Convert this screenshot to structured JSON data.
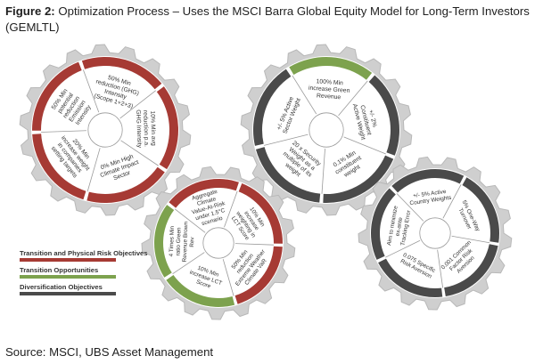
{
  "caption": {
    "figure_label": "Figure 2:",
    "text": "Optimization Process – Uses the MSCI Barra Global Equity Model for Long-Term Investors (GEMLTL)"
  },
  "colors": {
    "red": "#a63a34",
    "green": "#7da24e",
    "grey": "#4a4a4a",
    "gear": "#cfcfcf",
    "gear_edge": "#b8b8b8"
  },
  "legend": [
    {
      "label": "Transition and Physical Risk Objectives",
      "color": "#a63a34"
    },
    {
      "label": "Transition Opportunities",
      "color": "#7da24e"
    },
    {
      "label": "Diversification Objectives",
      "color": "#4a4a4a"
    }
  ],
  "gears": [
    {
      "name": "transition-physical-gear",
      "segments": [
        {
          "text": "50% Min reduction (GHG) Intensity (Scope 1+2+3)",
          "color": "#a63a34"
        },
        {
          "text": "10% Min avg reduction p.a. GHG Intensity",
          "color": "#a63a34"
        },
        {
          "text": "0% Min High Climate Impact Sector",
          "color": "#a63a34"
        },
        {
          "text": "20% Min increase weight in companies setting targets",
          "color": "#a63a34"
        },
        {
          "text": "50% Min potential reduction Emission Intensity",
          "color": "#a63a34"
        }
      ]
    },
    {
      "name": "constituent-weight-gear",
      "segments": [
        {
          "text": "100% Min increase Green Revenue",
          "color": "#7da24e"
        },
        {
          "text": "+/- 2% Constituent Active Weight",
          "color": "#4a4a4a"
        },
        {
          "text": "0.1% Min constituent weight",
          "color": "#4a4a4a"
        },
        {
          "text": "20 x Security Weight as a multiple of its weight",
          "color": "#4a4a4a"
        },
        {
          "text": "+/- 5% Active Sector Weight",
          "color": "#4a4a4a"
        }
      ]
    },
    {
      "name": "climate-opportunity-gear",
      "segments": [
        {
          "text": "Aggregate Climate Value-At-Risk under 1.5°C scenario",
          "color": "#a63a34"
        },
        {
          "text": "10% Min increase weighting in LCT Score",
          "color": "#a63a34"
        },
        {
          "text": "50% Min reduction Extreme Weather Climate VaR",
          "color": "#a63a34"
        },
        {
          "text": "10% Min increase LCT Score",
          "color": "#7da24e"
        },
        {
          "text": "4 Times Min ratio Green Revenue Brown Rev",
          "color": "#7da24e"
        }
      ]
    },
    {
      "name": "diversification-gear",
      "segments": [
        {
          "text": "+/- 5% Active Country Weights",
          "color": "#4a4a4a"
        },
        {
          "text": "5% One-Way Turnover",
          "color": "#4a4a4a"
        },
        {
          "text": "0.001 Common Factor Risk Aversion",
          "color": "#4a4a4a"
        },
        {
          "text": "0.075 Specific Risk Aversion",
          "color": "#4a4a4a"
        },
        {
          "text": "Aim to minimize ex-ante Tracking Error",
          "color": "#4a4a4a"
        }
      ]
    }
  ],
  "source": "Source: MSCI, UBS Asset Management"
}
